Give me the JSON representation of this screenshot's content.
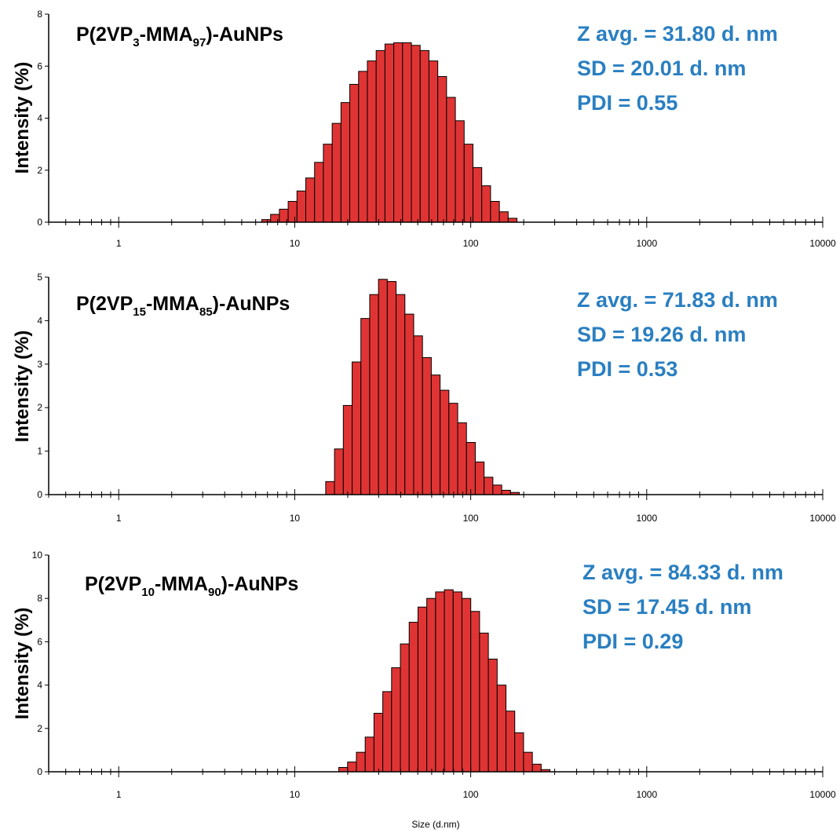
{
  "colors": {
    "bar": "#e03434",
    "stats": "#2a7fc1"
  },
  "x_axis": {
    "label": "Size (d.nm)",
    "ticks": [
      1,
      10,
      100,
      1000,
      10000
    ],
    "tick_labels": [
      "1",
      "10",
      "100",
      "1000",
      "10000"
    ]
  },
  "chart_data": [
    {
      "type": "bar",
      "name_parts": [
        "P(2VP",
        "3",
        "-MMA",
        "97",
        ")-AuNPs"
      ],
      "stats": [
        "Z avg. = 31.80 d. nm",
        "SD = 20.01 d. nm",
        "PDI = 0.55"
      ],
      "ylabel": "Intensity (%)",
      "ylim": [
        0,
        8
      ],
      "yticks": [
        0,
        2,
        4,
        6,
        8
      ],
      "xlim": [
        0.4,
        10000
      ],
      "xscale": "log",
      "bin_start": 6.5,
      "bin_ratio": 1.122,
      "values": [
        0.1,
        0.3,
        0.5,
        0.8,
        1.2,
        1.7,
        2.3,
        3.0,
        3.8,
        4.6,
        5.3,
        5.8,
        6.2,
        6.6,
        6.85,
        6.9,
        6.9,
        6.8,
        6.6,
        6.2,
        5.6,
        4.8,
        3.9,
        3.0,
        2.1,
        1.4,
        0.8,
        0.4,
        0.15
      ]
    },
    {
      "type": "bar",
      "name_parts": [
        "P(2VP",
        "15",
        "-MMA",
        "85",
        ")-AuNPs"
      ],
      "stats": [
        "Z avg. = 71.83 d. nm",
        "SD = 19.26 d. nm",
        "PDI = 0.53"
      ],
      "ylabel": "Intensity (%)",
      "ylim": [
        0,
        5
      ],
      "yticks": [
        0,
        1,
        2,
        3,
        4,
        5
      ],
      "xlim": [
        0.4,
        10000
      ],
      "xscale": "log",
      "bin_start": 15.0,
      "bin_ratio": 1.122,
      "values": [
        0.3,
        1.05,
        2.05,
        3.05,
        4.05,
        4.6,
        4.95,
        4.9,
        4.6,
        4.15,
        3.65,
        3.15,
        2.75,
        2.4,
        2.1,
        1.65,
        1.2,
        0.75,
        0.4,
        0.22,
        0.1,
        0.05
      ]
    },
    {
      "type": "bar",
      "name_parts": [
        "P(2VP",
        "10",
        "-MMA",
        "90",
        ")-AuNPs"
      ],
      "stats": [
        "Z avg. = 84.33 d. nm",
        "SD = 17.45 d. nm",
        "PDI = 0.29"
      ],
      "ylabel": "Intensity (%)",
      "ylim": [
        0,
        10
      ],
      "yticks": [
        0,
        2,
        4,
        6,
        8,
        10
      ],
      "xlim": [
        0.4,
        10000
      ],
      "xscale": "log",
      "bin_start": 17.8,
      "bin_ratio": 1.122,
      "values": [
        0.2,
        0.45,
        0.9,
        1.6,
        2.7,
        3.7,
        4.8,
        5.9,
        6.9,
        7.6,
        8.0,
        8.3,
        8.4,
        8.3,
        8.0,
        7.4,
        6.4,
        5.2,
        4.0,
        2.8,
        1.8,
        0.9,
        0.35,
        0.1
      ]
    }
  ]
}
